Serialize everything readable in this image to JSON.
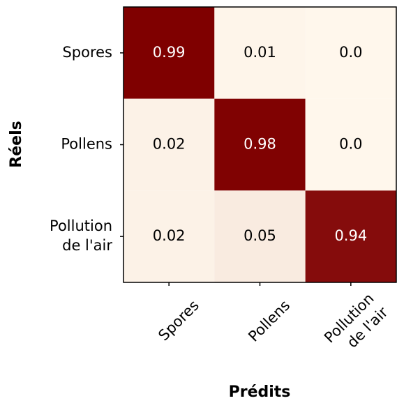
{
  "chart_data": {
    "type": "heatmap",
    "x_label": "Prédits",
    "y_label": "Réels",
    "x_categories": [
      "Spores",
      "Pollens",
      "Pollution\nde l'air"
    ],
    "y_categories": [
      "Spores",
      "Pollens",
      "Pollution\nde l'air"
    ],
    "values": [
      [
        0.99,
        0.01,
        0
      ],
      [
        0.02,
        0.98,
        0
      ],
      [
        0.02,
        0.05,
        0.94
      ]
    ],
    "value_labels": [
      [
        "0.99",
        "0.01",
        "0.0"
      ],
      [
        "0.02",
        "0.98",
        "0.0"
      ],
      [
        "0.02",
        "0.05",
        "0.94"
      ]
    ],
    "colormap": [
      "#fff7ec",
      "#7f0000"
    ]
  }
}
